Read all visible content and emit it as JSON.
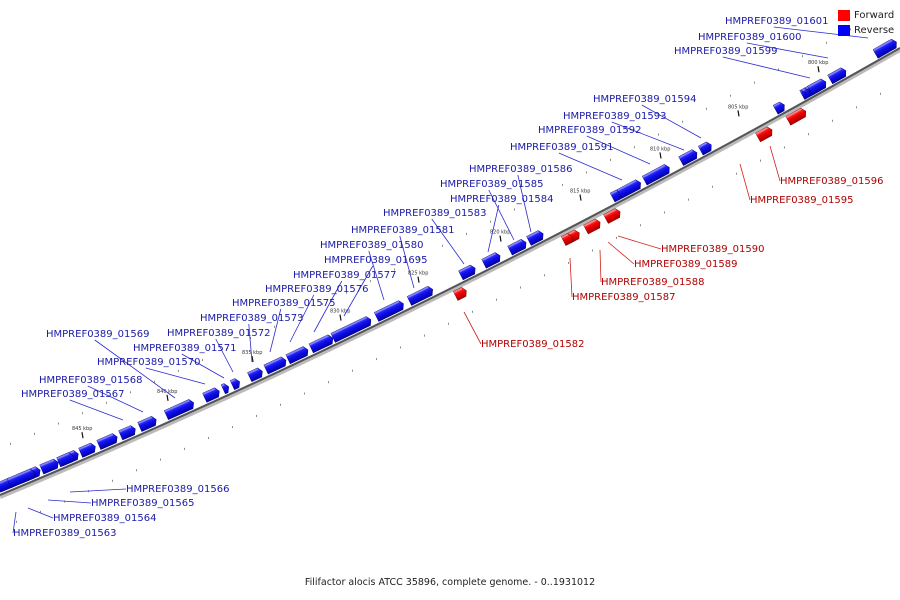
{
  "legend": {
    "forward_label": "Forward",
    "reverse_label": "Reverse",
    "forward_color": "#ff0000",
    "reverse_color": "#0000ff"
  },
  "caption": "Filifactor alocis ATCC 35896, complete genome. - 0..1931012",
  "colors": {
    "reverse_label_text": "#1a1aa8",
    "forward_label_text": "#b00000",
    "backbone": "#555555"
  },
  "ticks": [
    {
      "label": "800 kbp",
      "kbp": 800
    },
    {
      "label": "805 kbp",
      "kbp": 805
    },
    {
      "label": "810 kbp",
      "kbp": 810
    },
    {
      "label": "815 kbp",
      "kbp": 815
    },
    {
      "label": "820 kbp",
      "kbp": 820
    },
    {
      "label": "825 kbp",
      "kbp": 825
    },
    {
      "label": "830 kbp",
      "kbp": 830
    },
    {
      "label": "835 kbp",
      "kbp": 835
    },
    {
      "label": "840 kbp",
      "kbp": 840
    },
    {
      "label": "845 kbp",
      "kbp": 845
    }
  ],
  "genes": [
    {
      "id": "HMPREF0389_01601",
      "strand": "reverse",
      "labeled": true
    },
    {
      "id": "HMPREF0389_01600",
      "strand": "reverse",
      "labeled": true
    },
    {
      "id": "HMPREF0389_01599",
      "strand": "reverse",
      "labeled": true
    },
    {
      "id": "HMPREF0389_01594",
      "strand": "reverse",
      "labeled": true
    },
    {
      "id": "HMPREF0389_01593",
      "strand": "reverse",
      "labeled": true
    },
    {
      "id": "HMPREF0389_01592",
      "strand": "reverse",
      "labeled": true
    },
    {
      "id": "HMPREF0389_01591",
      "strand": "reverse",
      "labeled": true
    },
    {
      "id": "HMPREF0389_01586",
      "strand": "reverse",
      "labeled": true
    },
    {
      "id": "HMPREF0389_01585",
      "strand": "reverse",
      "labeled": true
    },
    {
      "id": "HMPREF0389_01584",
      "strand": "reverse",
      "labeled": true
    },
    {
      "id": "HMPREF0389_01583",
      "strand": "reverse",
      "labeled": true
    },
    {
      "id": "HMPREF0389_01581",
      "strand": "reverse",
      "labeled": true
    },
    {
      "id": "HMPREF0389_01580",
      "strand": "reverse",
      "labeled": true
    },
    {
      "id": "HMPREF0389_01695",
      "strand": "reverse",
      "labeled": true
    },
    {
      "id": "HMPREF0389_01577",
      "strand": "reverse",
      "labeled": true
    },
    {
      "id": "HMPREF0389_01576",
      "strand": "reverse",
      "labeled": true
    },
    {
      "id": "HMPREF0389_01575",
      "strand": "reverse",
      "labeled": true
    },
    {
      "id": "HMPREF0389_01573",
      "strand": "reverse",
      "labeled": true
    },
    {
      "id": "HMPREF0389_01572",
      "strand": "reverse",
      "labeled": true
    },
    {
      "id": "HMPREF0389_01571",
      "strand": "reverse",
      "labeled": true
    },
    {
      "id": "HMPREF0389_01570",
      "strand": "reverse",
      "labeled": true
    },
    {
      "id": "HMPREF0389_01569",
      "strand": "reverse",
      "labeled": true
    },
    {
      "id": "HMPREF0389_01568",
      "strand": "reverse",
      "labeled": true
    },
    {
      "id": "HMPREF0389_01567",
      "strand": "reverse",
      "labeled": true
    },
    {
      "id": "HMPREF0389_01566",
      "strand": "reverse",
      "labeled": true
    },
    {
      "id": "HMPREF0389_01565",
      "strand": "reverse",
      "labeled": true
    },
    {
      "id": "HMPREF0389_01564",
      "strand": "reverse",
      "labeled": true
    },
    {
      "id": "HMPREF0389_01563",
      "strand": "reverse",
      "labeled": true
    },
    {
      "id": "HMPREF0389_01596",
      "strand": "forward",
      "labeled": true
    },
    {
      "id": "HMPREF0389_01595",
      "strand": "forward",
      "labeled": true
    },
    {
      "id": "HMPREF0389_01590",
      "strand": "forward",
      "labeled": true
    },
    {
      "id": "HMPREF0389_01589",
      "strand": "forward",
      "labeled": true
    },
    {
      "id": "HMPREF0389_01588",
      "strand": "forward",
      "labeled": true
    },
    {
      "id": "HMPREF0389_01587",
      "strand": "forward",
      "labeled": true
    },
    {
      "id": "HMPREF0389_01582",
      "strand": "forward",
      "labeled": true
    }
  ]
}
